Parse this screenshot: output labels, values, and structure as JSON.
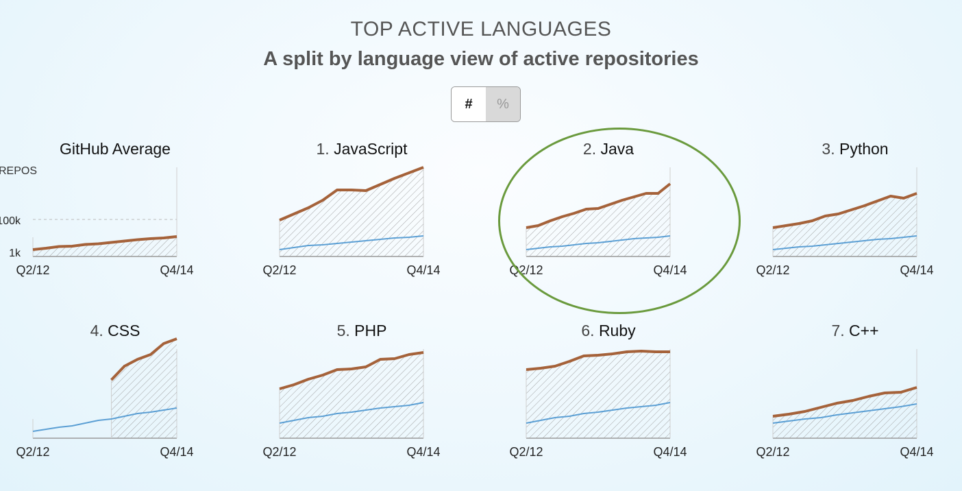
{
  "header": {
    "title": "TOP ACTIVE LANGUAGES",
    "subtitle": "A split by language view of active repositories"
  },
  "toggle": {
    "count_label": "#",
    "percent_label": "%",
    "selected": "#"
  },
  "colors": {
    "language_line": "#a5623a",
    "average_line": "#5b9fd4",
    "hatch": "#999999",
    "highlight": "#6a9a3d"
  },
  "chart_data": [
    {
      "type": "area",
      "title": "GitHub Average",
      "ylabel": "REPOS",
      "yscale": "log",
      "yticks": [
        "100k",
        "1k"
      ],
      "x_start": "Q2/12",
      "x_end": "Q4/14",
      "series": [
        {
          "values": [
            0.1,
            0.12,
            0.145,
            0.15,
            0.175,
            0.185,
            0.205,
            0.225,
            0.245,
            0.26,
            0.27,
            0.29
          ]
        }
      ]
    },
    {
      "type": "area",
      "rank": "1.",
      "title": "JavaScript",
      "x_start": "Q2/12",
      "x_end": "Q4/14",
      "series": [
        {
          "values": [
            0.53,
            0.62,
            0.71,
            0.82,
            0.97,
            0.97,
            0.96,
            1.05,
            1.14,
            1.22,
            1.3
          ]
        },
        {
          "values": [
            0.1,
            0.13,
            0.16,
            0.17,
            0.19,
            0.21,
            0.23,
            0.25,
            0.27,
            0.28,
            0.3
          ]
        }
      ]
    },
    {
      "type": "area",
      "rank": "2.",
      "title": "Java",
      "x_start": "Q2/12",
      "x_end": "Q4/14",
      "highlighted": true,
      "series": [
        {
          "values": [
            0.42,
            0.45,
            0.52,
            0.58,
            0.63,
            0.69,
            0.7,
            0.76,
            0.82,
            0.87,
            0.92,
            0.92,
            1.06
          ]
        },
        {
          "values": [
            0.1,
            0.12,
            0.14,
            0.15,
            0.17,
            0.19,
            0.2,
            0.22,
            0.24,
            0.26,
            0.27,
            0.28,
            0.3
          ]
        }
      ]
    },
    {
      "type": "area",
      "rank": "3.",
      "title": "Python",
      "x_start": "Q2/12",
      "x_end": "Q4/14",
      "series": [
        {
          "values": [
            0.42,
            0.45,
            0.48,
            0.52,
            0.59,
            0.62,
            0.68,
            0.74,
            0.81,
            0.88,
            0.85,
            0.92
          ]
        },
        {
          "values": [
            0.1,
            0.12,
            0.14,
            0.15,
            0.17,
            0.19,
            0.21,
            0.23,
            0.25,
            0.26,
            0.28,
            0.3
          ]
        }
      ]
    },
    {
      "type": "area",
      "rank": "4.",
      "title": "CSS",
      "x_start": "Q2/12",
      "x_end": "Q4/14",
      "series": [
        {
          "values": [
            null,
            null,
            null,
            null,
            null,
            null,
            0.85,
            1.05,
            1.15,
            1.22,
            1.38,
            1.45
          ]
        },
        {
          "values": [
            0.1,
            0.13,
            0.16,
            0.18,
            0.22,
            0.26,
            0.28,
            0.32,
            0.36,
            0.38,
            0.41,
            0.44
          ]
        }
      ]
    },
    {
      "type": "area",
      "rank": "5.",
      "title": "PHP",
      "x_start": "Q2/12",
      "x_end": "Q4/14",
      "series": [
        {
          "values": [
            0.72,
            0.78,
            0.86,
            0.92,
            1.0,
            1.01,
            1.04,
            1.15,
            1.16,
            1.22,
            1.25
          ]
        },
        {
          "values": [
            0.22,
            0.26,
            0.3,
            0.32,
            0.36,
            0.38,
            0.41,
            0.44,
            0.46,
            0.48,
            0.52
          ]
        }
      ]
    },
    {
      "type": "area",
      "rank": "6.",
      "title": "Ruby",
      "x_start": "Q2/12",
      "x_end": "Q4/14",
      "series": [
        {
          "values": [
            1.0,
            1.02,
            1.05,
            1.12,
            1.2,
            1.21,
            1.23,
            1.26,
            1.27,
            1.26,
            1.26
          ]
        },
        {
          "values": [
            0.22,
            0.26,
            0.3,
            0.32,
            0.36,
            0.38,
            0.41,
            0.44,
            0.46,
            0.48,
            0.52
          ]
        }
      ]
    },
    {
      "type": "area",
      "rank": "7.",
      "title": "C++",
      "x_start": "Q2/12",
      "x_end": "Q4/14",
      "series": [
        {
          "values": [
            0.32,
            0.35,
            0.39,
            0.45,
            0.51,
            0.55,
            0.61,
            0.66,
            0.67,
            0.74
          ]
        },
        {
          "values": [
            0.22,
            0.25,
            0.28,
            0.3,
            0.34,
            0.37,
            0.4,
            0.43,
            0.46,
            0.5
          ]
        }
      ]
    }
  ]
}
